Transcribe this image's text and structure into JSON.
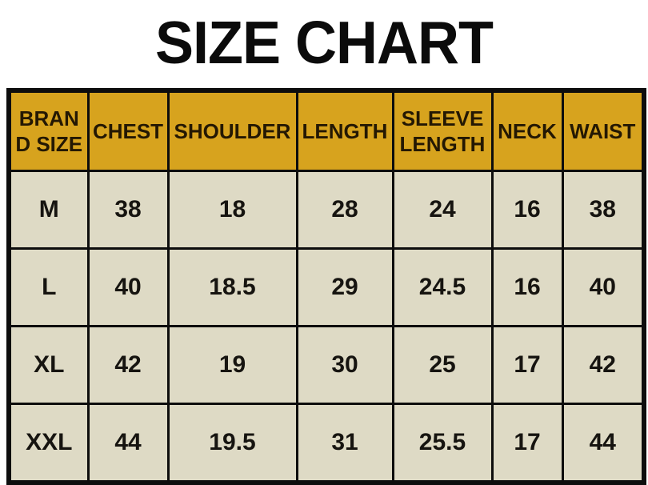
{
  "title": "SIZE CHART",
  "colors": {
    "header_background": "#d7a31e",
    "cell_background": "#dedac5",
    "border": "#0d0d0d",
    "title_text": "#0b0b0b"
  },
  "chart_data": {
    "type": "table",
    "title": "SIZE CHART",
    "headers": [
      "BRAND SIZE",
      "CHEST",
      "SHOULDER",
      "LENGTH",
      "SLEEVE LENGTH",
      "NECK",
      "WAIST"
    ],
    "rows": [
      [
        "M",
        "38",
        "18",
        "28",
        "24",
        "16",
        "38"
      ],
      [
        "L",
        "40",
        "18.5",
        "29",
        "24.5",
        "16",
        "40"
      ],
      [
        "XL",
        "42",
        "19",
        "30",
        "25",
        "17",
        "42"
      ],
      [
        "XXL",
        "44",
        "19.5",
        "31",
        "25.5",
        "17",
        "44"
      ]
    ]
  },
  "table": {
    "headers": [
      "BRAN\nD SIZE",
      "CHEST",
      "SHOULDER",
      "LENGTH",
      "SLEEVE\nLENGTH",
      "NECK",
      "WAIST"
    ],
    "rows": [
      [
        "M",
        "38",
        "18",
        "28",
        "24",
        "16",
        "38"
      ],
      [
        "L",
        "40",
        "18.5",
        "29",
        "24.5",
        "16",
        "40"
      ],
      [
        "XL",
        "42",
        "19",
        "30",
        "25",
        "17",
        "42"
      ],
      [
        "XXL",
        "44",
        "19.5",
        "31",
        "25.5",
        "17",
        "44"
      ]
    ]
  }
}
